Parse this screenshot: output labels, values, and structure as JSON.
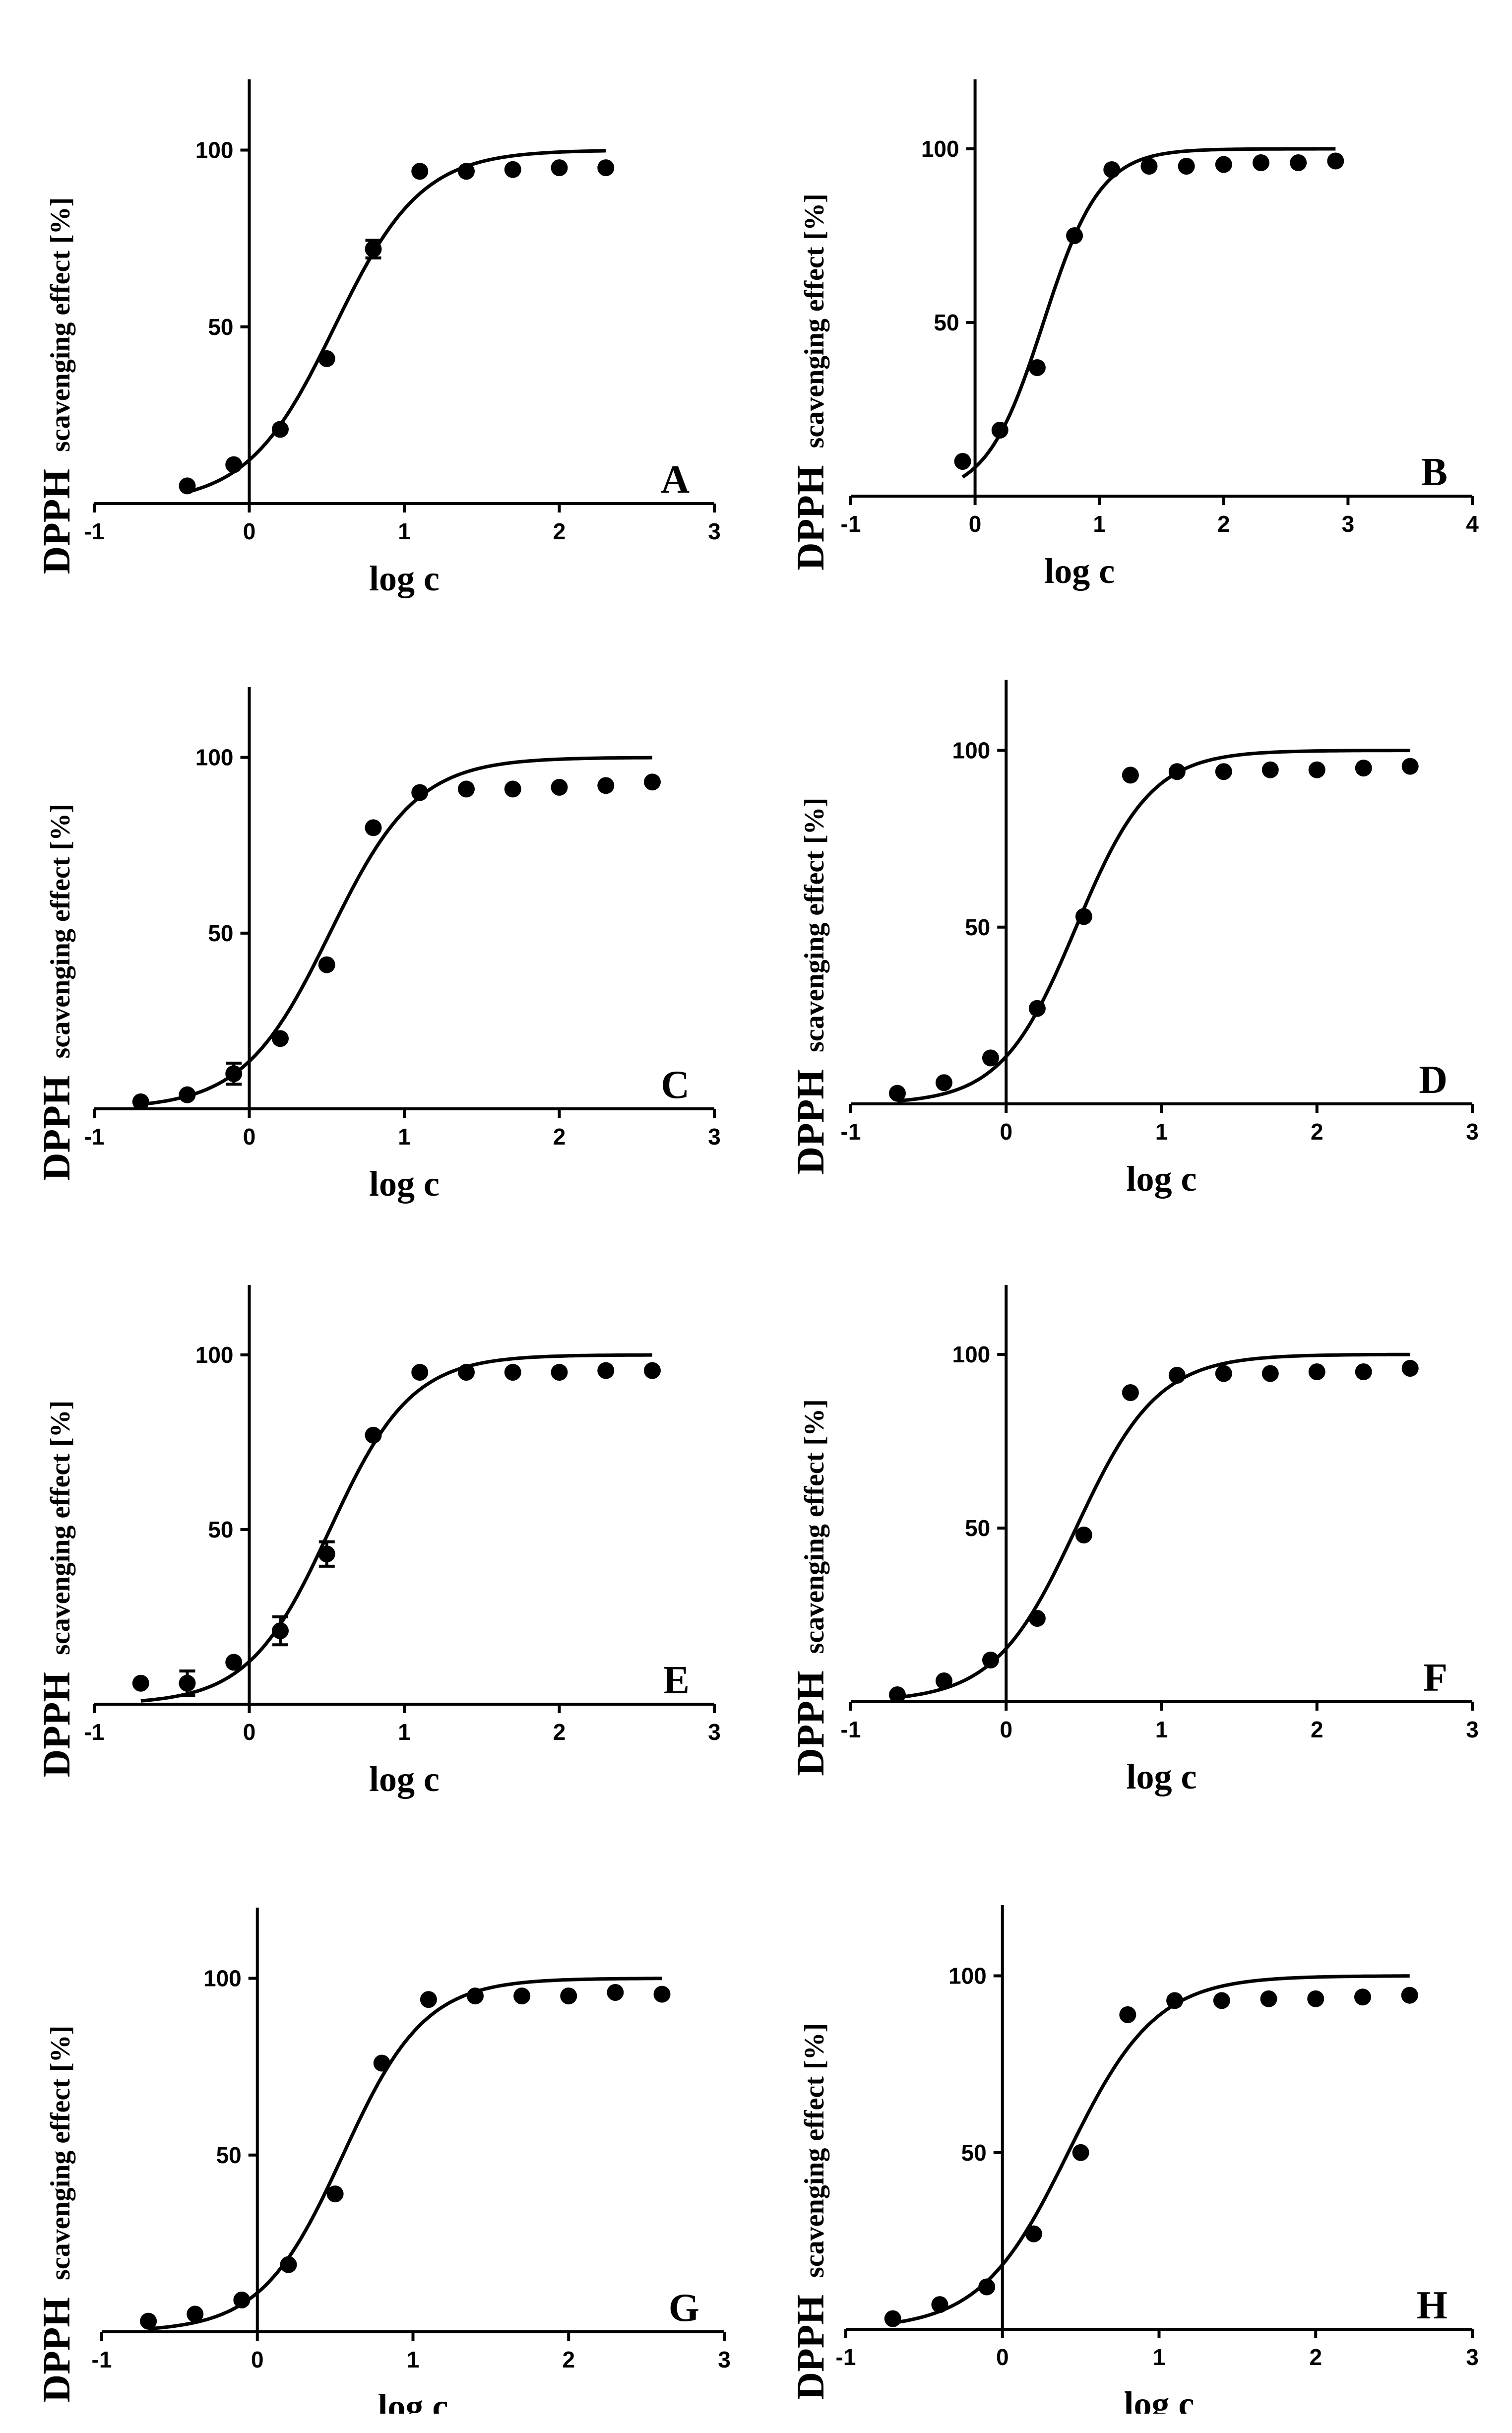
{
  "figure": {
    "description_free": true
  },
  "chart_data": [
    {
      "type": "scatter",
      "panel_label": "A",
      "xlabel": "log c",
      "ylabel_prefix": "DPPH",
      "ylabel_rest": "scavenging effect [%]",
      "xlim": [
        -1,
        3
      ],
      "ylim": [
        0,
        120
      ],
      "x_ticks": [
        -1,
        0,
        1,
        2,
        3
      ],
      "x_tick_labels": [
        "-1",
        "0",
        "1",
        "2",
        "3"
      ],
      "y_ticks": [
        50,
        100
      ],
      "y_tick_labels": [
        "50",
        "100"
      ],
      "series": [
        {
          "name": "data",
          "x": [
            -0.4,
            -0.1,
            0.2,
            0.5,
            0.8,
            1.1,
            1.4,
            1.7,
            2.0,
            2.3
          ],
          "y": [
            5,
            11,
            21,
            41,
            72,
            94,
            94,
            94.5,
            95,
            95
          ],
          "err": [
            0,
            0,
            0,
            0,
            2.5,
            0,
            0,
            0,
            0,
            0
          ]
        }
      ],
      "fit": {
        "x_min": -0.4,
        "x_max": 2.3,
        "logEC50": 0.55,
        "hill": 1.55
      }
    },
    {
      "type": "scatter",
      "panel_label": "B",
      "xlabel": "log c",
      "ylabel_prefix": "DPPH",
      "ylabel_rest": "scavenging effect [%]",
      "xlim": [
        -1,
        4
      ],
      "ylim": [
        0,
        120
      ],
      "x_ticks": [
        -1,
        0,
        1,
        2,
        3,
        4
      ],
      "x_tick_labels": [
        "-1",
        "0",
        "1",
        "2",
        "3",
        "4"
      ],
      "y_ticks": [
        50,
        100
      ],
      "y_tick_labels": [
        "50",
        "100"
      ],
      "series": [
        {
          "name": "data",
          "x": [
            -0.1,
            0.2,
            0.5,
            0.8,
            1.1,
            1.4,
            1.7,
            2.0,
            2.3,
            2.6,
            2.9
          ],
          "y": [
            10,
            19,
            37,
            75,
            94,
            95,
            95,
            95.5,
            96,
            96,
            96.5
          ],
          "err": [
            0,
            0,
            0,
            0,
            0,
            0,
            0,
            0,
            0,
            0,
            0
          ]
        }
      ],
      "fit": {
        "x_min": -0.1,
        "x_max": 2.9,
        "logEC50": 0.55,
        "hill": 1.9
      }
    },
    {
      "type": "scatter",
      "panel_label": "C",
      "xlabel": "log c",
      "ylabel_prefix": "DPPH",
      "ylabel_rest": "scavenging effect [%]",
      "xlim": [
        -1,
        3
      ],
      "ylim": [
        0,
        120
      ],
      "x_ticks": [
        -1,
        0,
        1,
        2,
        3
      ],
      "x_tick_labels": [
        "-1",
        "0",
        "1",
        "2",
        "3"
      ],
      "y_ticks": [
        50,
        100
      ],
      "y_tick_labels": [
        "50",
        "100"
      ],
      "series": [
        {
          "name": "data",
          "x": [
            -0.7,
            -0.4,
            -0.1,
            0.2,
            0.5,
            0.8,
            1.1,
            1.4,
            1.7,
            2.0,
            2.3,
            2.6
          ],
          "y": [
            2,
            4,
            10,
            20,
            41,
            80,
            90,
            91,
            91,
            91.5,
            92,
            93
          ],
          "err": [
            0,
            0,
            3,
            0,
            0,
            0,
            0,
            0,
            0,
            0,
            0,
            0
          ]
        }
      ],
      "fit": {
        "x_min": -0.7,
        "x_max": 2.6,
        "logEC50": 0.52,
        "hill": 1.55
      }
    },
    {
      "type": "scatter",
      "panel_label": "D",
      "xlabel": "log c",
      "ylabel_prefix": "DPPH",
      "ylabel_rest": "scavenging effect [%]",
      "xlim": [
        -1,
        3
      ],
      "ylim": [
        0,
        120
      ],
      "x_ticks": [
        -1,
        0,
        1,
        2,
        3
      ],
      "x_tick_labels": [
        "-1",
        "0",
        "1",
        "2",
        "3"
      ],
      "y_ticks": [
        50,
        100
      ],
      "y_tick_labels": [
        "50",
        "100"
      ],
      "series": [
        {
          "name": "data",
          "x": [
            -0.7,
            -0.4,
            -0.1,
            0.2,
            0.5,
            0.8,
            1.1,
            1.4,
            1.7,
            2.0,
            2.3,
            2.6
          ],
          "y": [
            3,
            6,
            13,
            27,
            53,
            93,
            94,
            94,
            94.5,
            94.5,
            95,
            95.5
          ],
          "err": [
            0,
            0,
            0,
            0,
            0,
            0,
            0,
            0,
            0,
            0,
            0,
            0
          ]
        }
      ],
      "fit": {
        "x_min": -0.7,
        "x_max": 2.6,
        "logEC50": 0.45,
        "hill": 1.8
      }
    },
    {
      "type": "scatter",
      "panel_label": "E",
      "xlabel": "log c",
      "ylabel_prefix": "DPPH",
      "ylabel_rest": "scavenging effect [%]",
      "xlim": [
        -1,
        3
      ],
      "ylim": [
        0,
        120
      ],
      "x_ticks": [
        -1,
        0,
        1,
        2,
        3
      ],
      "x_tick_labels": [
        "-1",
        "0",
        "1",
        "2",
        "3"
      ],
      "y_ticks": [
        50,
        100
      ],
      "y_tick_labels": [
        "50",
        "100"
      ],
      "series": [
        {
          "name": "data",
          "x": [
            -0.7,
            -0.4,
            -0.1,
            0.2,
            0.5,
            0.8,
            1.1,
            1.4,
            1.7,
            2.0,
            2.3,
            2.6
          ],
          "y": [
            6,
            6,
            12,
            21,
            43,
            77,
            95,
            95,
            95,
            95,
            95.5,
            95.5
          ],
          "err": [
            0,
            3.5,
            0,
            4,
            3.5,
            0,
            0,
            0,
            0,
            0,
            0,
            0
          ]
        }
      ],
      "fit": {
        "x_min": -0.7,
        "x_max": 2.6,
        "logEC50": 0.52,
        "hill": 1.65
      }
    },
    {
      "type": "scatter",
      "panel_label": "F",
      "xlabel": "log c",
      "ylabel_prefix": "DPPH",
      "ylabel_rest": "scavenging effect [%]",
      "xlim": [
        -1,
        3
      ],
      "ylim": [
        0,
        120
      ],
      "x_ticks": [
        -1,
        0,
        1,
        2,
        3
      ],
      "x_tick_labels": [
        "-1",
        "0",
        "1",
        "2",
        "3"
      ],
      "y_ticks": [
        50,
        100
      ],
      "y_tick_labels": [
        "50",
        "100"
      ],
      "series": [
        {
          "name": "data",
          "x": [
            -0.7,
            -0.4,
            -0.1,
            0.2,
            0.5,
            0.8,
            1.1,
            1.4,
            1.7,
            2.0,
            2.3,
            2.6
          ],
          "y": [
            2,
            6,
            12,
            24,
            48,
            89,
            94,
            94.5,
            94.5,
            95,
            95,
            96
          ],
          "err": [
            0,
            0,
            0,
            0,
            0,
            0,
            0,
            0,
            0,
            0,
            0,
            0
          ]
        }
      ],
      "fit": {
        "x_min": -0.7,
        "x_max": 2.6,
        "logEC50": 0.45,
        "hill": 1.65
      }
    },
    {
      "type": "scatter",
      "panel_label": "G",
      "xlabel": "log c",
      "ylabel_prefix": "DPPH",
      "ylabel_rest": "scavenging effect [%]",
      "xlim": [
        -1,
        3
      ],
      "ylim": [
        0,
        120
      ],
      "x_ticks": [
        -1,
        0,
        1,
        2,
        3
      ],
      "x_tick_labels": [
        "-1",
        "0",
        "1",
        "2",
        "3"
      ],
      "y_ticks": [
        50,
        100
      ],
      "y_tick_labels": [
        "50",
        "100"
      ],
      "series": [
        {
          "name": "data",
          "x": [
            -0.7,
            -0.4,
            -0.1,
            0.2,
            0.5,
            0.8,
            1.1,
            1.4,
            1.7,
            2.0,
            2.3,
            2.6
          ],
          "y": [
            3,
            5,
            9,
            19,
            39,
            76,
            94,
            95,
            95,
            95,
            96,
            95.5
          ],
          "err": [
            0,
            0,
            0,
            0,
            0,
            0,
            0,
            0,
            0,
            0,
            0,
            0
          ]
        }
      ],
      "fit": {
        "x_min": -0.7,
        "x_max": 2.6,
        "logEC50": 0.55,
        "hill": 1.65
      }
    },
    {
      "type": "scatter",
      "panel_label": "H",
      "xlabel": "log c",
      "ylabel_prefix": "DPPH",
      "ylabel_rest": "scavenging effect [%]",
      "xlim": [
        -1,
        3
      ],
      "ylim": [
        0,
        120
      ],
      "x_ticks": [
        -1,
        0,
        1,
        2,
        3
      ],
      "x_tick_labels": [
        "-1",
        "0",
        "1",
        "2",
        "3"
      ],
      "y_ticks": [
        50,
        100
      ],
      "y_tick_labels": [
        "50",
        "100"
      ],
      "series": [
        {
          "name": "data",
          "x": [
            -0.7,
            -0.4,
            -0.1,
            0.2,
            0.5,
            0.8,
            1.1,
            1.4,
            1.7,
            2.0,
            2.3,
            2.6
          ],
          "y": [
            3,
            7,
            12,
            27,
            50,
            89,
            93,
            93,
            93.5,
            93.5,
            94,
            94.5
          ],
          "err": [
            0,
            0,
            0,
            0,
            0,
            0,
            0,
            0,
            0,
            0,
            0,
            0
          ]
        }
      ],
      "fit": {
        "x_min": -0.7,
        "x_max": 2.6,
        "logEC50": 0.42,
        "hill": 1.55
      }
    }
  ]
}
